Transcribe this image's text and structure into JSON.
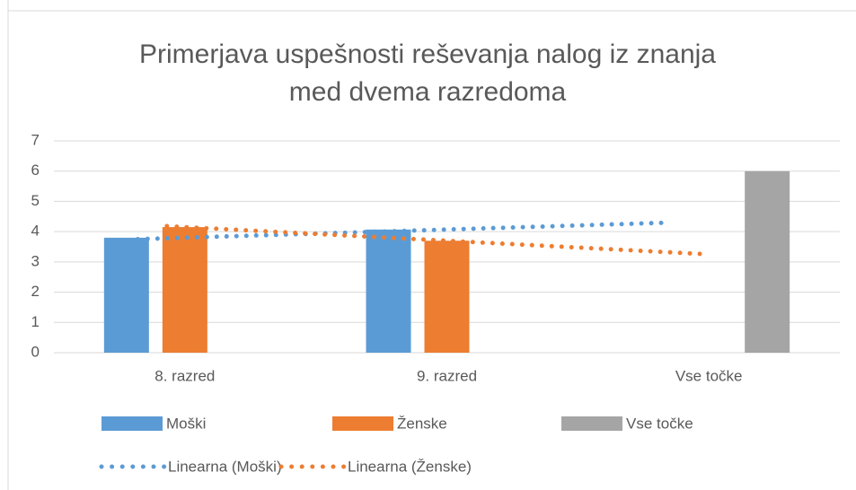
{
  "chart_data": {
    "type": "bar",
    "title": [
      "Primerjava uspešnosti reševanja nalog iz znanja",
      "med dvema razredoma"
    ],
    "categories": [
      "8. razred",
      "9. razred",
      "Vse točke"
    ],
    "series": [
      {
        "name": "Moški",
        "color": "#5b9bd5",
        "values": [
          3.8,
          4.07,
          null
        ]
      },
      {
        "name": "Ženske",
        "color": "#ed7d31",
        "values": [
          4.15,
          3.7,
          null
        ]
      },
      {
        "name": "Vse točke",
        "color": "#a5a5a5",
        "values": [
          null,
          null,
          6
        ]
      }
    ],
    "trendlines": [
      {
        "name": "Linearna (Moški)",
        "series": 0,
        "color": "#5b9bd5"
      },
      {
        "name": "Linearna (Ženske)",
        "series": 1,
        "color": "#ed7d31"
      }
    ],
    "ylim": [
      0,
      7
    ],
    "yticks": [
      0,
      1,
      2,
      3,
      4,
      5,
      6,
      7
    ],
    "grid": true,
    "legend": "bottom"
  }
}
